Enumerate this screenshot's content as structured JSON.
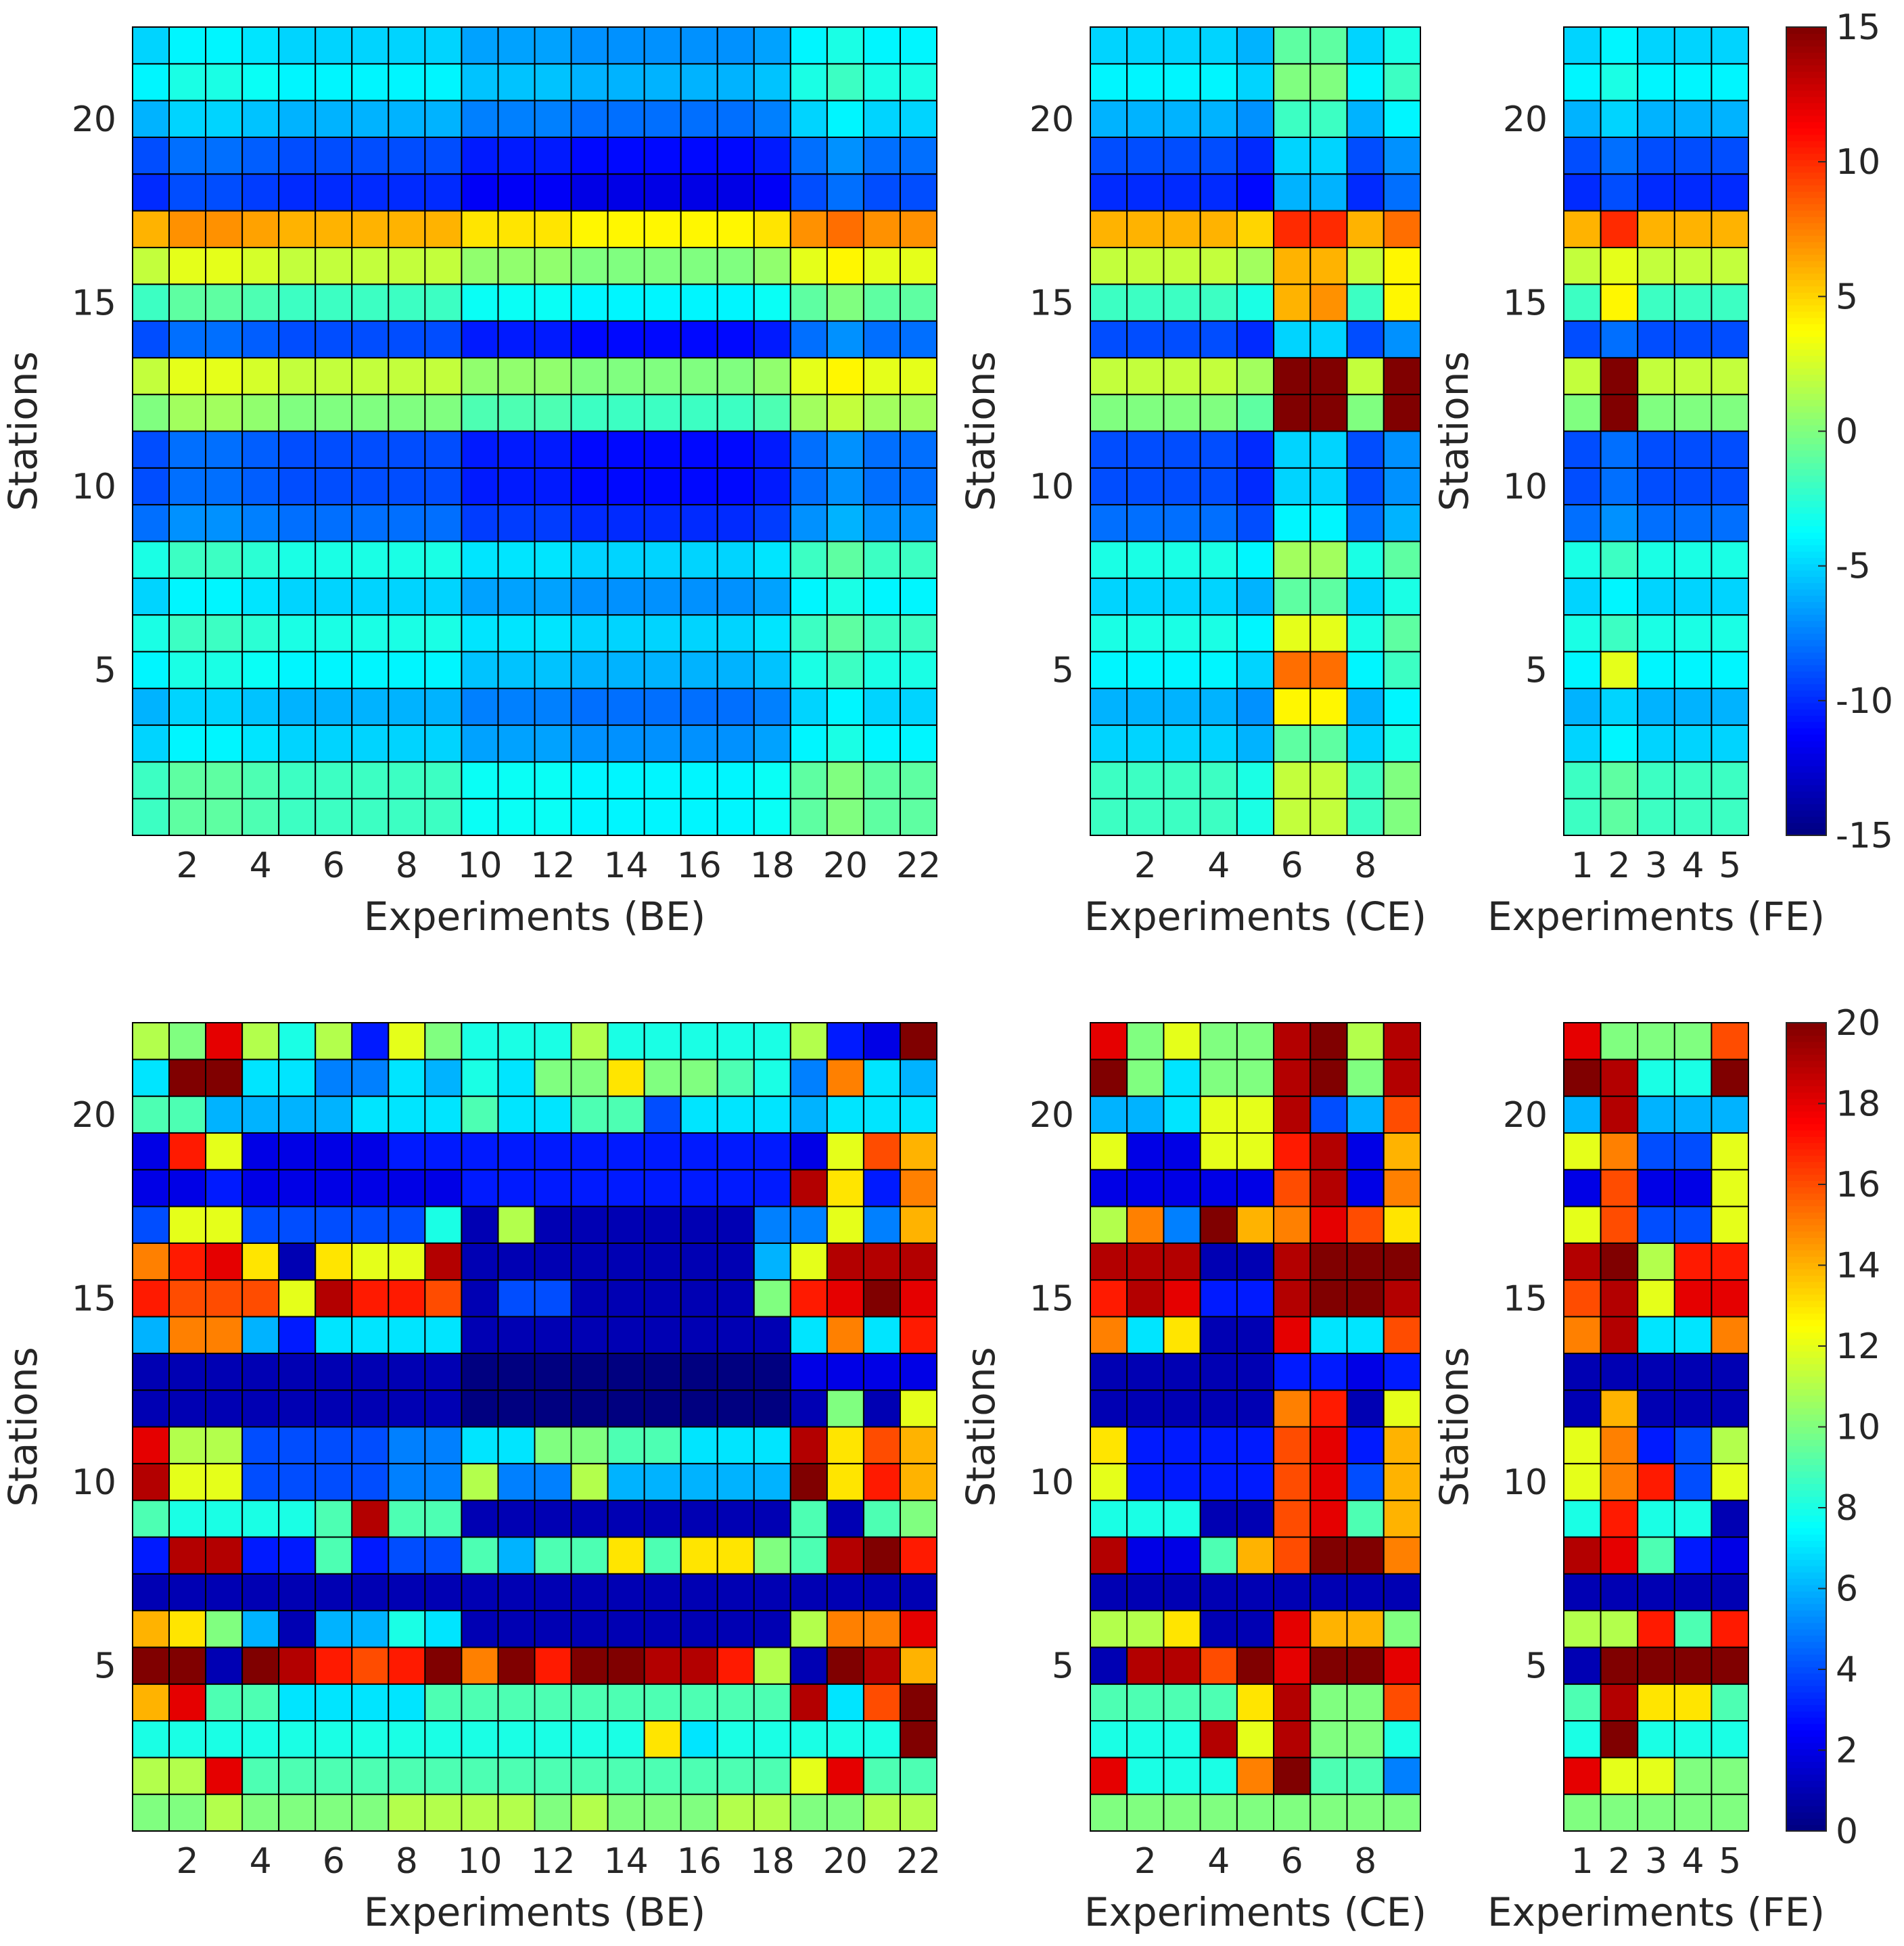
{
  "chart_data": [
    {
      "type": "heatmap",
      "id": "top-be",
      "row": "top",
      "xlabel": "Experiments (BE)",
      "ylabel": "Stations",
      "x_count": 22,
      "y_count": 22,
      "xticks": [
        2,
        4,
        6,
        8,
        10,
        12,
        14,
        16,
        18,
        20,
        22
      ],
      "yticks": [
        5,
        10,
        15,
        20
      ],
      "colorscale": {
        "min": -15,
        "max": 15
      },
      "station_profile": [
        -2,
        -2,
        -5,
        -6,
        -4,
        -3,
        -5,
        -3,
        -8,
        -9,
        -9,
        0,
        2,
        -9,
        -2,
        2,
        6,
        -10,
        -9,
        -6,
        -4,
        -5
      ],
      "column_shifts": [
        0,
        1,
        1,
        0.5,
        0,
        0,
        0,
        0,
        0,
        -1.5,
        -1.5,
        -1.5,
        -2,
        -2,
        -2,
        -2,
        -2,
        -1.5,
        1,
        2,
        1,
        1
      ]
    },
    {
      "type": "heatmap",
      "id": "top-ce",
      "row": "top",
      "xlabel": "Experiments (CE)",
      "ylabel": "Stations",
      "x_count": 9,
      "y_count": 22,
      "xticks": [
        2,
        4,
        6,
        8
      ],
      "yticks": [
        5,
        10,
        15,
        20
      ],
      "colorscale": {
        "min": -15,
        "max": 15
      },
      "station_profile": [
        -2,
        -2,
        -5,
        -6,
        -4,
        -3,
        -5,
        -3,
        -8,
        -9,
        -9,
        0,
        2,
        -9,
        -2,
        2,
        6,
        -10,
        -9,
        -6,
        -4,
        -5
      ],
      "column_shifts": [
        0,
        0,
        0,
        0,
        -1,
        4,
        4,
        0,
        2
      ],
      "overrides": [
        {
          "x": 6,
          "y": 12,
          "value": 15
        },
        {
          "x": 7,
          "y": 12,
          "value": 15
        },
        {
          "x": 9,
          "y": 12,
          "value": 15
        },
        {
          "x": 6,
          "y": 13,
          "value": 15
        },
        {
          "x": 7,
          "y": 13,
          "value": 15
        },
        {
          "x": 9,
          "y": 13,
          "value": 15
        },
        {
          "x": 6,
          "y": 5,
          "value": 8
        },
        {
          "x": 7,
          "y": 5,
          "value": 8
        },
        {
          "x": 6,
          "y": 4,
          "value": 4
        },
        {
          "x": 7,
          "y": 4,
          "value": 4
        },
        {
          "x": 6,
          "y": 6,
          "value": 3
        },
        {
          "x": 7,
          "y": 6,
          "value": 3
        },
        {
          "x": 6,
          "y": 15,
          "value": 6
        },
        {
          "x": 7,
          "y": 15,
          "value": 7
        },
        {
          "x": 9,
          "y": 15,
          "value": 4
        }
      ]
    },
    {
      "type": "heatmap",
      "id": "top-fe",
      "row": "top",
      "xlabel": "Experiments (FE)",
      "ylabel": "Stations",
      "x_count": 5,
      "y_count": 22,
      "xticks": [
        1,
        2,
        3,
        4,
        5
      ],
      "yticks": [
        5,
        10,
        15,
        20
      ],
      "colorscale": {
        "min": -15,
        "max": 15
      },
      "station_profile": [
        -2,
        -2,
        -5,
        -6,
        -4,
        -3,
        -5,
        -3,
        -8,
        -9,
        -9,
        0,
        2,
        -9,
        -2,
        2,
        6,
        -10,
        -9,
        -6,
        -4,
        -5
      ],
      "column_shifts": [
        0,
        1,
        0,
        0,
        0
      ],
      "overrides": [
        {
          "x": 2,
          "y": 12,
          "value": 15
        },
        {
          "x": 2,
          "y": 13,
          "value": 15
        },
        {
          "x": 2,
          "y": 17,
          "value": 10
        },
        {
          "x": 2,
          "y": 15,
          "value": 4
        },
        {
          "x": 2,
          "y": 5,
          "value": 3
        }
      ],
      "colorbar": {
        "ticks": [
          -15,
          -10,
          -5,
          0,
          5,
          10,
          15
        ]
      }
    },
    {
      "type": "heatmap",
      "id": "bottom-be",
      "row": "bottom",
      "xlabel": "Experiments (BE)",
      "ylabel": "Stations",
      "x_count": 22,
      "y_count": 22,
      "xticks": [
        2,
        4,
        6,
        8,
        10,
        12,
        14,
        16,
        18,
        20,
        22
      ],
      "yticks": [
        5,
        10,
        15,
        20
      ],
      "colorscale": {
        "min": 0,
        "max": 20
      },
      "rows": [
        [
          11,
          10,
          18,
          11,
          8,
          11,
          3,
          12,
          10,
          8,
          8,
          8,
          11,
          8,
          8,
          8,
          8,
          8,
          11,
          3,
          2,
          20
        ],
        [
          7,
          20,
          20,
          7,
          7,
          5,
          5,
          7,
          6,
          8,
          7,
          10,
          10,
          13,
          10,
          10,
          9,
          8,
          5,
          15,
          7,
          6
        ],
        [
          9,
          9,
          6,
          6,
          6,
          6,
          7,
          7,
          7,
          9,
          7,
          7,
          9,
          9,
          4,
          7,
          7,
          7,
          6,
          7,
          7,
          7
        ],
        [
          2,
          17,
          12,
          2,
          2,
          2,
          2,
          3,
          3,
          3,
          3,
          3,
          3,
          3,
          3,
          3,
          3,
          3,
          2,
          12,
          16,
          14
        ],
        [
          2,
          2,
          3,
          2,
          2,
          2,
          2,
          2,
          2,
          3,
          3,
          3,
          3,
          3,
          3,
          3,
          3,
          3,
          19,
          13,
          3,
          15
        ],
        [
          4,
          12,
          12,
          4,
          4,
          4,
          4,
          4,
          8,
          1,
          11,
          1,
          1,
          1,
          1,
          1,
          1,
          5,
          5,
          12,
          5,
          14
        ],
        [
          15,
          17,
          18,
          13,
          1,
          13,
          12,
          12,
          19,
          1,
          1,
          1,
          1,
          1,
          1,
          1,
          1,
          6,
          12,
          19,
          19,
          19
        ],
        [
          17,
          16,
          16,
          16,
          12,
          19,
          17,
          17,
          16,
          1,
          4,
          4,
          1,
          1,
          1,
          1,
          1,
          10,
          17,
          18,
          20,
          18
        ],
        [
          6,
          15,
          15,
          6,
          3,
          7,
          7,
          7,
          7,
          1,
          1,
          1,
          1,
          1,
          1,
          1,
          1,
          1,
          7,
          15,
          7,
          17
        ],
        [
          1,
          1,
          1,
          1,
          1,
          1,
          1,
          1,
          1,
          0,
          0,
          0,
          0,
          0,
          0,
          0,
          0,
          0,
          2,
          2,
          2,
          2
        ],
        [
          1,
          1,
          1,
          1,
          1,
          1,
          1,
          1,
          1,
          0,
          0,
          0,
          0,
          0,
          0,
          0,
          0,
          0,
          1,
          10,
          1,
          12
        ],
        [
          18,
          11,
          11,
          4,
          4,
          4,
          4,
          5,
          5,
          7,
          7,
          10,
          10,
          9,
          9,
          7,
          7,
          7,
          19,
          13,
          16,
          14
        ],
        [
          19,
          12,
          12,
          4,
          4,
          4,
          4,
          5,
          5,
          11,
          5,
          5,
          11,
          6,
          6,
          6,
          6,
          6,
          20,
          13,
          17,
          14
        ],
        [
          9,
          8,
          8,
          8,
          8,
          9,
          19,
          9,
          9,
          1,
          1,
          1,
          1,
          1,
          1,
          1,
          1,
          1,
          9,
          1,
          9,
          10
        ],
        [
          3,
          19,
          19,
          3,
          3,
          9,
          3,
          4,
          4,
          9,
          6,
          9,
          9,
          13,
          9,
          13,
          13,
          10,
          9,
          19,
          20,
          17
        ],
        [
          1,
          1,
          1,
          1,
          1,
          1,
          1,
          1,
          1,
          1,
          1,
          1,
          1,
          1,
          1,
          1,
          1,
          1,
          1,
          1,
          1,
          1
        ],
        [
          14,
          13,
          10,
          6,
          1,
          6,
          6,
          8,
          7,
          1,
          1,
          1,
          1,
          1,
          1,
          1,
          1,
          1,
          11,
          15,
          15,
          18
        ],
        [
          20,
          20,
          1,
          20,
          19,
          17,
          16,
          17,
          20,
          15,
          20,
          17,
          20,
          20,
          19,
          19,
          17,
          11,
          1,
          20,
          19,
          14
        ],
        [
          14,
          18,
          9,
          9,
          7,
          7,
          7,
          7,
          9,
          9,
          9,
          9,
          9,
          9,
          9,
          9,
          9,
          9,
          19,
          7,
          16,
          20
        ],
        [
          8,
          8,
          8,
          8,
          8,
          8,
          8,
          8,
          8,
          8,
          8,
          8,
          8,
          8,
          13,
          7,
          8,
          8,
          8,
          8,
          8,
          20
        ],
        [
          11,
          11,
          18,
          9,
          9,
          9,
          9,
          9,
          9,
          9,
          9,
          9,
          9,
          9,
          9,
          9,
          9,
          9,
          12,
          18,
          9,
          9
        ],
        [
          10,
          10,
          11,
          10,
          10,
          10,
          10,
          11,
          11,
          11,
          11,
          10,
          11,
          10,
          10,
          10,
          11,
          11,
          10,
          10,
          11,
          11
        ]
      ]
    },
    {
      "type": "heatmap",
      "id": "bottom-ce",
      "row": "bottom",
      "xlabel": "Experiments (CE)",
      "ylabel": "Stations",
      "x_count": 9,
      "y_count": 22,
      "xticks": [
        2,
        4,
        6,
        8
      ],
      "yticks": [
        5,
        10,
        15,
        20
      ],
      "colorscale": {
        "min": 0,
        "max": 20
      },
      "rows": [
        [
          18,
          10,
          12,
          10,
          10,
          19,
          20,
          11,
          19
        ],
        [
          20,
          10,
          7,
          10,
          10,
          19,
          20,
          10,
          19
        ],
        [
          6,
          6,
          7,
          12,
          12,
          19,
          4,
          6,
          16
        ],
        [
          12,
          2,
          2,
          12,
          12,
          17,
          19,
          2,
          14
        ],
        [
          2,
          2,
          2,
          2,
          2,
          16,
          19,
          2,
          15
        ],
        [
          11,
          15,
          5,
          20,
          14,
          15,
          18,
          16,
          13
        ],
        [
          19,
          19,
          19,
          1,
          1,
          19,
          20,
          20,
          20
        ],
        [
          17,
          19,
          18,
          3,
          3,
          19,
          20,
          20,
          19
        ],
        [
          15,
          7,
          13,
          1,
          1,
          18,
          7,
          7,
          16
        ],
        [
          1,
          1,
          1,
          1,
          1,
          3,
          3,
          2,
          3
        ],
        [
          1,
          1,
          1,
          1,
          1,
          15,
          17,
          1,
          12
        ],
        [
          13,
          3,
          3,
          3,
          3,
          16,
          18,
          3,
          14
        ],
        [
          12,
          3,
          3,
          3,
          3,
          16,
          18,
          4,
          14
        ],
        [
          8,
          8,
          8,
          1,
          1,
          16,
          18,
          9,
          14
        ],
        [
          19,
          2,
          2,
          9,
          14,
          16,
          20,
          20,
          15
        ],
        [
          1,
          1,
          1,
          1,
          1,
          1,
          1,
          1,
          1
        ],
        [
          11,
          11,
          13,
          1,
          1,
          18,
          14,
          14,
          10
        ],
        [
          1,
          19,
          19,
          16,
          20,
          18,
          20,
          20,
          18
        ],
        [
          9,
          9,
          9,
          9,
          13,
          19,
          10,
          10,
          16
        ],
        [
          8,
          8,
          8,
          19,
          12,
          19,
          10,
          10,
          8
        ],
        [
          18,
          8,
          8,
          8,
          15,
          20,
          9,
          9,
          5
        ],
        [
          10,
          10,
          10,
          10,
          10,
          10,
          10,
          10,
          10
        ]
      ]
    },
    {
      "type": "heatmap",
      "id": "bottom-fe",
      "row": "bottom",
      "xlabel": "Experiments (FE)",
      "ylabel": "Stations",
      "x_count": 5,
      "y_count": 22,
      "xticks": [
        1,
        2,
        3,
        4,
        5
      ],
      "yticks": [
        5,
        10,
        15,
        20
      ],
      "colorscale": {
        "min": 0,
        "max": 20
      },
      "rows": [
        [
          18,
          10,
          10,
          10,
          16
        ],
        [
          20,
          19,
          8,
          8,
          20
        ],
        [
          6,
          19,
          6,
          6,
          6
        ],
        [
          12,
          15,
          4,
          4,
          12
        ],
        [
          2,
          16,
          2,
          2,
          12
        ],
        [
          12,
          16,
          4,
          4,
          12
        ],
        [
          19,
          20,
          11,
          17,
          17
        ],
        [
          16,
          19,
          12,
          18,
          18
        ],
        [
          15,
          19,
          7,
          7,
          15
        ],
        [
          1,
          1,
          1,
          1,
          1
        ],
        [
          1,
          14,
          1,
          1,
          1
        ],
        [
          12,
          15,
          3,
          4,
          11
        ],
        [
          12,
          15,
          17,
          4,
          12
        ],
        [
          8,
          17,
          8,
          8,
          1
        ],
        [
          19,
          18,
          9,
          3,
          2
        ],
        [
          1,
          1,
          1,
          1,
          1
        ],
        [
          11,
          11,
          17,
          9,
          17
        ],
        [
          1,
          20,
          20,
          20,
          20
        ],
        [
          9,
          19,
          13,
          13,
          9
        ],
        [
          8,
          20,
          8,
          8,
          8
        ],
        [
          18,
          12,
          12,
          10,
          10
        ],
        [
          10,
          10,
          10,
          10,
          10
        ]
      ],
      "colorbar": {
        "ticks": [
          0,
          2,
          4,
          6,
          8,
          10,
          12,
          14,
          16,
          18,
          20
        ]
      }
    }
  ]
}
